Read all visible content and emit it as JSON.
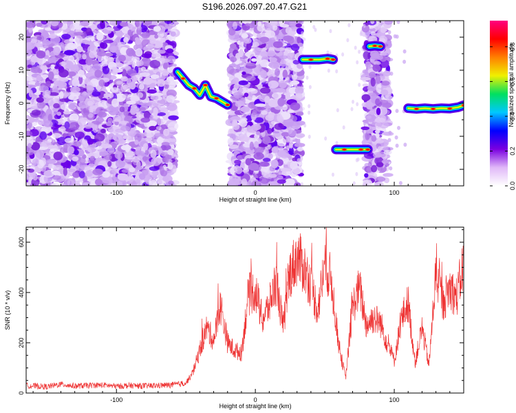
{
  "chart_data": [
    {
      "type": "heatmap",
      "title": "S196.2026.097.20.47.G21",
      "xlabel": "Height of straight line (km)",
      "ylabel": "Frequency (Hz)",
      "xlim": [
        -165,
        150
      ],
      "ylim": [
        -25,
        25
      ],
      "xticks": [
        -100,
        0,
        100
      ],
      "yticks": [
        -20,
        -10,
        0,
        10,
        20
      ],
      "colorbar": {
        "label": "Normalized spectral amplitude",
        "range": [
          0.0,
          0.95
        ],
        "ticks": [
          0.0,
          0.2,
          0.4,
          0.6,
          0.8
        ],
        "colors": [
          "#ffffff",
          "#e0b8f8",
          "#7a00e0",
          "#0000ff",
          "#00c8ff",
          "#00e060",
          "#f0f000",
          "#ff8000",
          "#ff0000",
          "#ff0080"
        ]
      },
      "noise_regions_km": [
        [
          -165,
          -58
        ],
        [
          -18,
          33
        ],
        [
          79,
          96
        ]
      ],
      "tracks": [
        {
          "x": [
            -56,
            -52,
            -48,
            -44,
            -40,
            -36,
            -32,
            -28,
            -24,
            -20
          ],
          "y": [
            9.5,
            7.5,
            5.5,
            4.5,
            2.5,
            5.5,
            2.0,
            1.5,
            0.5,
            -0.5
          ]
        },
        {
          "x": [
            34,
            40,
            46,
            52,
            56
          ],
          "y": [
            13.2,
            13.2,
            13.2,
            13.5,
            13.2
          ]
        },
        {
          "x": [
            58,
            64,
            70,
            76,
            81
          ],
          "y": [
            -14.0,
            -14.0,
            -14.0,
            -14.0,
            -14.0
          ]
        },
        {
          "x": [
            82,
            86,
            90
          ],
          "y": [
            17.2,
            17.4,
            17.2
          ]
        },
        {
          "x": [
            110,
            116,
            122,
            128,
            134,
            140,
            146,
            150
          ],
          "y": [
            -1.5,
            -1.7,
            -1.5,
            -1.7,
            -1.5,
            -1.6,
            -1.2,
            -0.6
          ]
        }
      ]
    },
    {
      "type": "line",
      "xlabel": "Height of straight line (km)",
      "ylabel": "SNR (10 * v/v)",
      "xlim": [
        -165,
        150
      ],
      "ylim": [
        0,
        660
      ],
      "xticks": [
        -100,
        0,
        100
      ],
      "yticks": [
        0,
        200,
        400,
        600
      ],
      "line_color": "#ee3333",
      "series": [
        {
          "name": "SNR",
          "x": [
            -165,
            -150,
            -140,
            -130,
            -120,
            -110,
            -100,
            -90,
            -80,
            -70,
            -60,
            -50,
            -45,
            -40,
            -35,
            -30,
            -25,
            -20,
            -15,
            -10,
            -5,
            0,
            5,
            10,
            15,
            20,
            25,
            30,
            35,
            40,
            45,
            50,
            55,
            60,
            65,
            70,
            75,
            80,
            85,
            90,
            95,
            100,
            105,
            110,
            115,
            120,
            125,
            130,
            135,
            140,
            145,
            150
          ],
          "y": [
            30,
            25,
            35,
            28,
            30,
            32,
            27,
            30,
            28,
            30,
            32,
            40,
            80,
            170,
            260,
            210,
            350,
            200,
            170,
            160,
            390,
            410,
            290,
            350,
            450,
            260,
            480,
            540,
            500,
            430,
            330,
            520,
            440,
            190,
            60,
            340,
            420,
            270,
            300,
            280,
            200,
            130,
            290,
            360,
            120,
            260,
            110,
            480,
            360,
            420,
            380,
            520
          ]
        }
      ]
    }
  ]
}
